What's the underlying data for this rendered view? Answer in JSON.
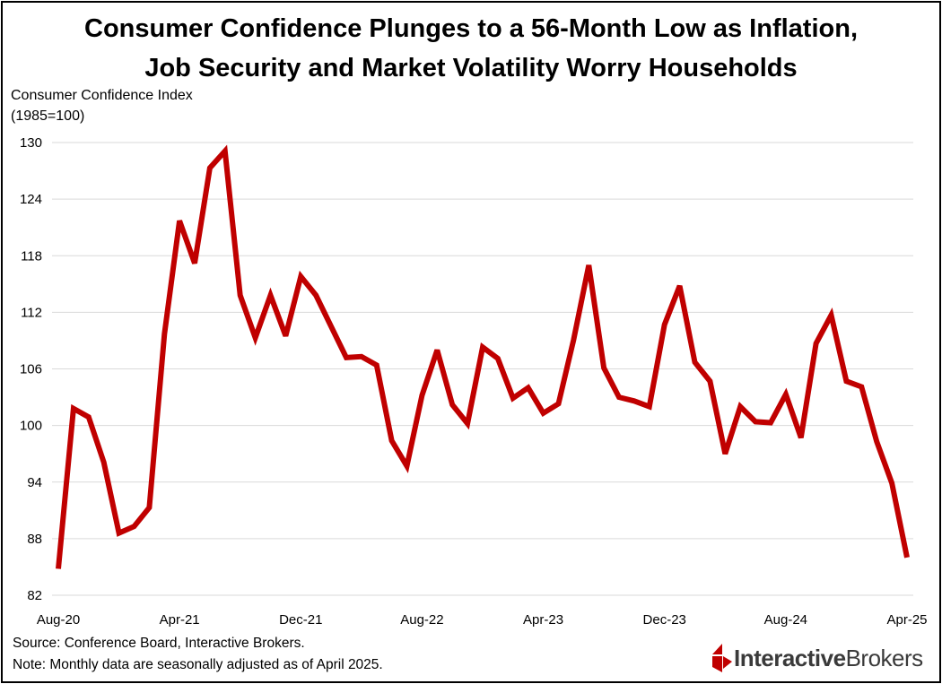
{
  "title_line1": "Consumer Confidence Plunges to a 56-Month Low as Inflation,",
  "title_line2": "Job Security and Market Volatility Worry Households",
  "y_axis_label_line1": "Consumer Confidence Index",
  "y_axis_label_line2": "(1985=100)",
  "source_note": "Source: Conference Board, Interactive Brokers.",
  "footnote": "Note: Monthly data are seasonally adjusted as of April 2025.",
  "logo": {
    "text_bold": "Interactive",
    "text_regular": "Brokers",
    "mark_color": "#c00000"
  },
  "colors": {
    "line": "#c00000",
    "grid": "#d9d9d9",
    "text": "#000000"
  },
  "chart_data": {
    "type": "line",
    "title": "Consumer Confidence Plunges to a 56-Month Low as Inflation, Job Security and Market Volatility Worry Households",
    "xlabel": "",
    "ylabel": "Consumer Confidence Index (1985=100)",
    "ylim": [
      82,
      130
    ],
    "yticks": [
      82,
      88,
      94,
      100,
      106,
      112,
      118,
      124,
      130
    ],
    "grid": true,
    "legend": "none",
    "x_ticks": [
      "Aug-20",
      "Apr-21",
      "Dec-21",
      "Aug-22",
      "Apr-23",
      "Dec-23",
      "Aug-24",
      "Apr-25"
    ],
    "x": [
      "Aug-20",
      "Sep-20",
      "Oct-20",
      "Nov-20",
      "Dec-20",
      "Jan-21",
      "Feb-21",
      "Mar-21",
      "Apr-21",
      "May-21",
      "Jun-21",
      "Jul-21",
      "Aug-21",
      "Sep-21",
      "Oct-21",
      "Nov-21",
      "Dec-21",
      "Jan-22",
      "Feb-22",
      "Mar-22",
      "Apr-22",
      "May-22",
      "Jun-22",
      "Jul-22",
      "Aug-22",
      "Sep-22",
      "Oct-22",
      "Nov-22",
      "Dec-22",
      "Jan-23",
      "Feb-23",
      "Mar-23",
      "Apr-23",
      "May-23",
      "Jun-23",
      "Jul-23",
      "Aug-23",
      "Sep-23",
      "Oct-23",
      "Nov-23",
      "Dec-23",
      "Jan-24",
      "Feb-24",
      "Mar-24",
      "Apr-24",
      "May-24",
      "Jun-24",
      "Jul-24",
      "Aug-24",
      "Sep-24",
      "Oct-24",
      "Nov-24",
      "Dec-24",
      "Jan-25",
      "Feb-25",
      "Mar-25",
      "Apr-25"
    ],
    "series": [
      {
        "values": [
          84.8,
          101.8,
          100.9,
          96.1,
          88.6,
          89.3,
          91.3,
          109.7,
          121.7,
          117.2,
          127.3,
          129.1,
          113.8,
          109.3,
          113.8,
          109.5,
          115.8,
          113.8,
          110.5,
          107.2,
          107.3,
          106.4,
          98.4,
          95.7,
          103.2,
          108.0,
          102.2,
          100.2,
          108.3,
          107.1,
          102.9,
          104.0,
          101.3,
          102.3,
          109.1,
          117.0,
          106.1,
          103.0,
          102.6,
          102.0,
          110.7,
          114.8,
          106.7,
          104.7,
          97.0,
          102.0,
          100.4,
          100.3,
          103.3,
          98.7,
          108.7,
          111.7,
          104.7,
          104.1,
          98.3,
          93.9,
          86.0
        ]
      }
    ]
  }
}
